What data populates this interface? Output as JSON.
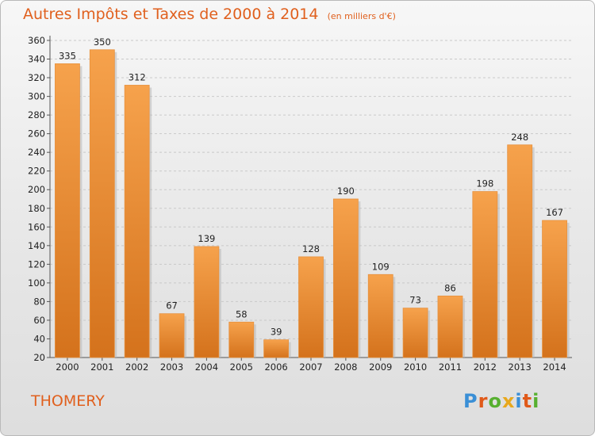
{
  "title": "Autres Impôts et Taxes de 2000 à 2014",
  "subtitle": "(en milliers d'€)",
  "location": "THOMERY",
  "logo": {
    "letters": [
      "P",
      "r",
      "o",
      "x",
      "i",
      "t",
      "i"
    ],
    "colors": [
      "#3a8fd6",
      "#e05a1a",
      "#57b030",
      "#e8a81c",
      "#3a8fd6",
      "#e05a1a",
      "#57b030"
    ]
  },
  "colors": {
    "bar_light": "#f6a24c",
    "bar_dark": "#d4721c",
    "accent": "#e0601e"
  },
  "chart_data": {
    "type": "bar",
    "categories": [
      "2000",
      "2001",
      "2002",
      "2003",
      "2004",
      "2005",
      "2006",
      "2007",
      "2008",
      "2009",
      "2010",
      "2011",
      "2012",
      "2013",
      "2014"
    ],
    "values": [
      335,
      350,
      312,
      67,
      139,
      58,
      39,
      128,
      190,
      109,
      73,
      86,
      198,
      248,
      167
    ],
    "title": "Autres Impôts et Taxes de 2000 à 2014",
    "xlabel": "",
    "ylabel": "",
    "ylim": [
      20,
      360
    ],
    "yticks": [
      20,
      40,
      60,
      80,
      100,
      120,
      140,
      160,
      180,
      200,
      220,
      240,
      260,
      280,
      300,
      320,
      340,
      360
    ],
    "grid": true,
    "legend": "none"
  }
}
